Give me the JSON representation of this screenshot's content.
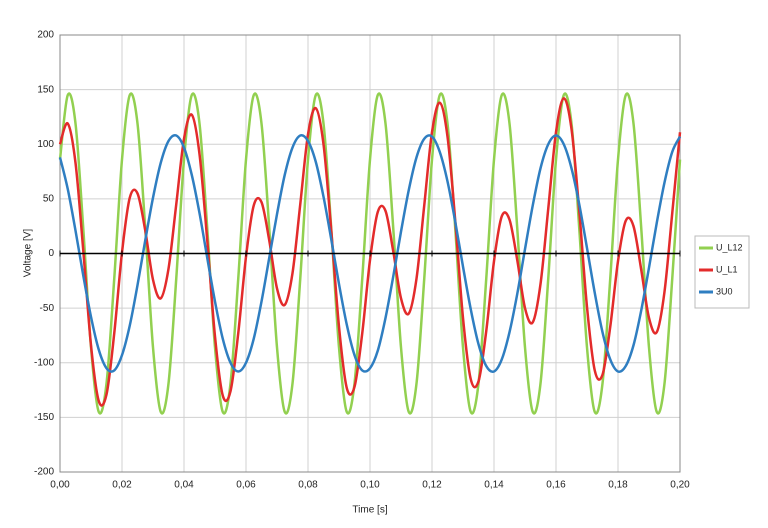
{
  "chart_data": {
    "type": "line",
    "xlabel": "Time [s]",
    "ylabel": "Voltage [V]",
    "x": [
      0,
      0.0025,
      0.005,
      0.0075,
      0.01,
      0.0125,
      0.015,
      0.0175,
      0.02,
      0.0225,
      0.025,
      0.0275,
      0.03,
      0.0325,
      0.035,
      0.0375,
      0.04,
      0.0425,
      0.045,
      0.0475,
      0.05,
      0.0525,
      0.055,
      0.0575,
      0.06,
      0.0625,
      0.065,
      0.0675,
      0.07,
      0.0725,
      0.075,
      0.0775,
      0.08,
      0.0825,
      0.085,
      0.0875,
      0.09,
      0.0925,
      0.095,
      0.0975,
      0.1,
      0.1025,
      0.105,
      0.1075,
      0.11,
      0.1125,
      0.115,
      0.1175,
      0.12,
      0.1225,
      0.125,
      0.1275,
      0.13,
      0.1325,
      0.135,
      0.1375,
      0.14,
      0.1425,
      0.145,
      0.1475,
      0.15,
      0.1525,
      0.155,
      0.1575,
      0.16,
      0.1625,
      0.165,
      0.1675,
      0.17,
      0.1725,
      0.175,
      0.1775,
      0.18,
      0.1825,
      0.185,
      0.1875,
      0.19,
      0.1925,
      0.195,
      0.1975,
      0.2
    ],
    "series": [
      {
        "name": "U_L12",
        "color": "#92d050",
        "values": [
          86,
          145,
          119,
          23,
          -86,
          -145,
          -119,
          -23,
          86,
          145,
          119,
          23,
          -86,
          -145,
          -119,
          -23,
          86,
          145,
          119,
          23,
          -86,
          -145,
          -119,
          -23,
          86,
          145,
          119,
          23,
          -86,
          -145,
          -119,
          -23,
          86,
          145,
          119,
          23,
          -86,
          -145,
          -119,
          -23,
          86,
          145,
          119,
          23,
          -86,
          -145,
          -119,
          -23,
          86,
          145,
          119,
          23,
          -86,
          -145,
          -119,
          -23,
          86,
          145,
          119,
          23,
          -86,
          -145,
          -119,
          -23,
          86,
          145,
          119,
          23,
          -86,
          -145,
          -119,
          -23,
          86,
          145,
          119,
          23,
          -86,
          -145,
          -119,
          -23,
          86
        ]
      },
      {
        "name": "U_L1",
        "color": "#e32b2b",
        "values": [
          100,
          119,
          83,
          3,
          -84,
          -135,
          -129,
          -73,
          1,
          51,
          55,
          21,
          -24,
          -41,
          -14,
          45,
          105,
          127,
          91,
          12,
          -76,
          -130,
          -126,
          -73,
          -3,
          44,
          47,
          12,
          -32,
          -47,
          -18,
          45,
          109,
          133,
          100,
          21,
          -67,
          -123,
          -122,
          -73,
          -6,
          38,
          39,
          2,
          -41,
          -55,
          -23,
          44,
          111,
          138,
          107,
          30,
          -59,
          -115,
          -117,
          -71,
          -7,
          34,
          31,
          -6,
          -50,
          -63,
          -28,
          41,
          111,
          142,
          114,
          39,
          -49,
          -107,
          -111,
          -67,
          -7,
          30,
          25,
          -15,
          -59,
          -72,
          -35,
          37,
          111
        ]
      },
      {
        "name": "3U0",
        "color": "#2f7ec1",
        "values": [
          88,
          59,
          21,
          -20,
          -58,
          -88,
          -105,
          -107,
          -93,
          -66,
          -29,
          12,
          51,
          83,
          103,
          108,
          97,
          72,
          37,
          -4,
          -44,
          -78,
          -100,
          -108,
          -100,
          -78,
          -44,
          -4,
          36,
          72,
          97,
          108,
          103,
          84,
          52,
          13,
          -28,
          -65,
          -93,
          -107,
          -105,
          -89,
          -59,
          -21,
          20,
          58,
          88,
          105,
          107,
          93,
          66,
          29,
          -12,
          -51,
          -83,
          -103,
          -108,
          -97,
          -72,
          -37,
          4,
          44,
          78,
          100,
          108,
          100,
          78,
          45,
          5,
          -36,
          -72,
          -97,
          -108,
          -103,
          -84,
          -52,
          -13,
          28,
          65,
          93,
          107
        ]
      }
    ],
    "xlim": [
      0,
      0.2
    ],
    "xticks": [
      {
        "value": 0,
        "label": "0,00"
      },
      {
        "value": 0.02,
        "label": "0,02"
      },
      {
        "value": 0.04,
        "label": "0,04"
      },
      {
        "value": 0.06,
        "label": "0,06"
      },
      {
        "value": 0.08,
        "label": "0,08"
      },
      {
        "value": 0.1,
        "label": "0,10"
      },
      {
        "value": 0.12,
        "label": "0,12"
      },
      {
        "value": 0.14,
        "label": "0,14"
      },
      {
        "value": 0.16,
        "label": "0,16"
      },
      {
        "value": 0.18,
        "label": "0,18"
      },
      {
        "value": 0.2,
        "label": "0,20"
      }
    ],
    "ylim": [
      -200,
      200
    ],
    "yticks": [
      -200,
      -150,
      -100,
      -50,
      0,
      50,
      100,
      150,
      200
    ],
    "grid": true,
    "legend": "right"
  }
}
